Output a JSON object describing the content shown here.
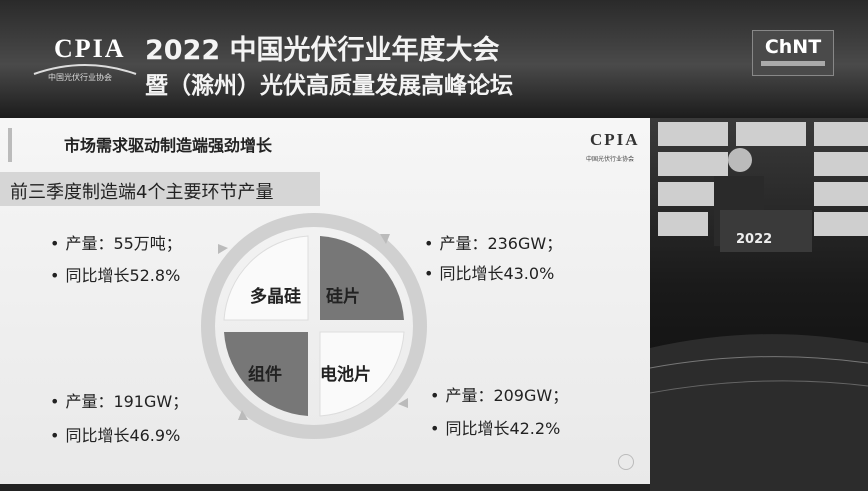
{
  "header": {
    "logo": "CPIA",
    "logo_sub": "中国光伏行业协会",
    "title_line1": "2022 中国光伏行业年度大会",
    "title_line2": "暨（滁州）光伏高质量发展高峰论坛",
    "sponsor": "ChNT"
  },
  "slide": {
    "title": "市场需求驱动制造端强劲增长",
    "logo": "CPIA",
    "logo_sub": "中国光伏行业协会",
    "subtitle": "前三季度制造端4个主要环节产量",
    "segments": [
      {
        "label": "多晶硅",
        "output": "产量：55万吨；",
        "growth": "同比增长52.8%"
      },
      {
        "label": "硅片",
        "output": "产量：236GW；",
        "growth": "同比增长43.0%"
      },
      {
        "label": "电池片",
        "output": "产量：209GW；",
        "growth": "同比增长42.2%"
      },
      {
        "label": "组件",
        "output": "产量：191GW；",
        "growth": "同比增长46.9%"
      }
    ]
  },
  "stage": {
    "podium": "2022"
  }
}
